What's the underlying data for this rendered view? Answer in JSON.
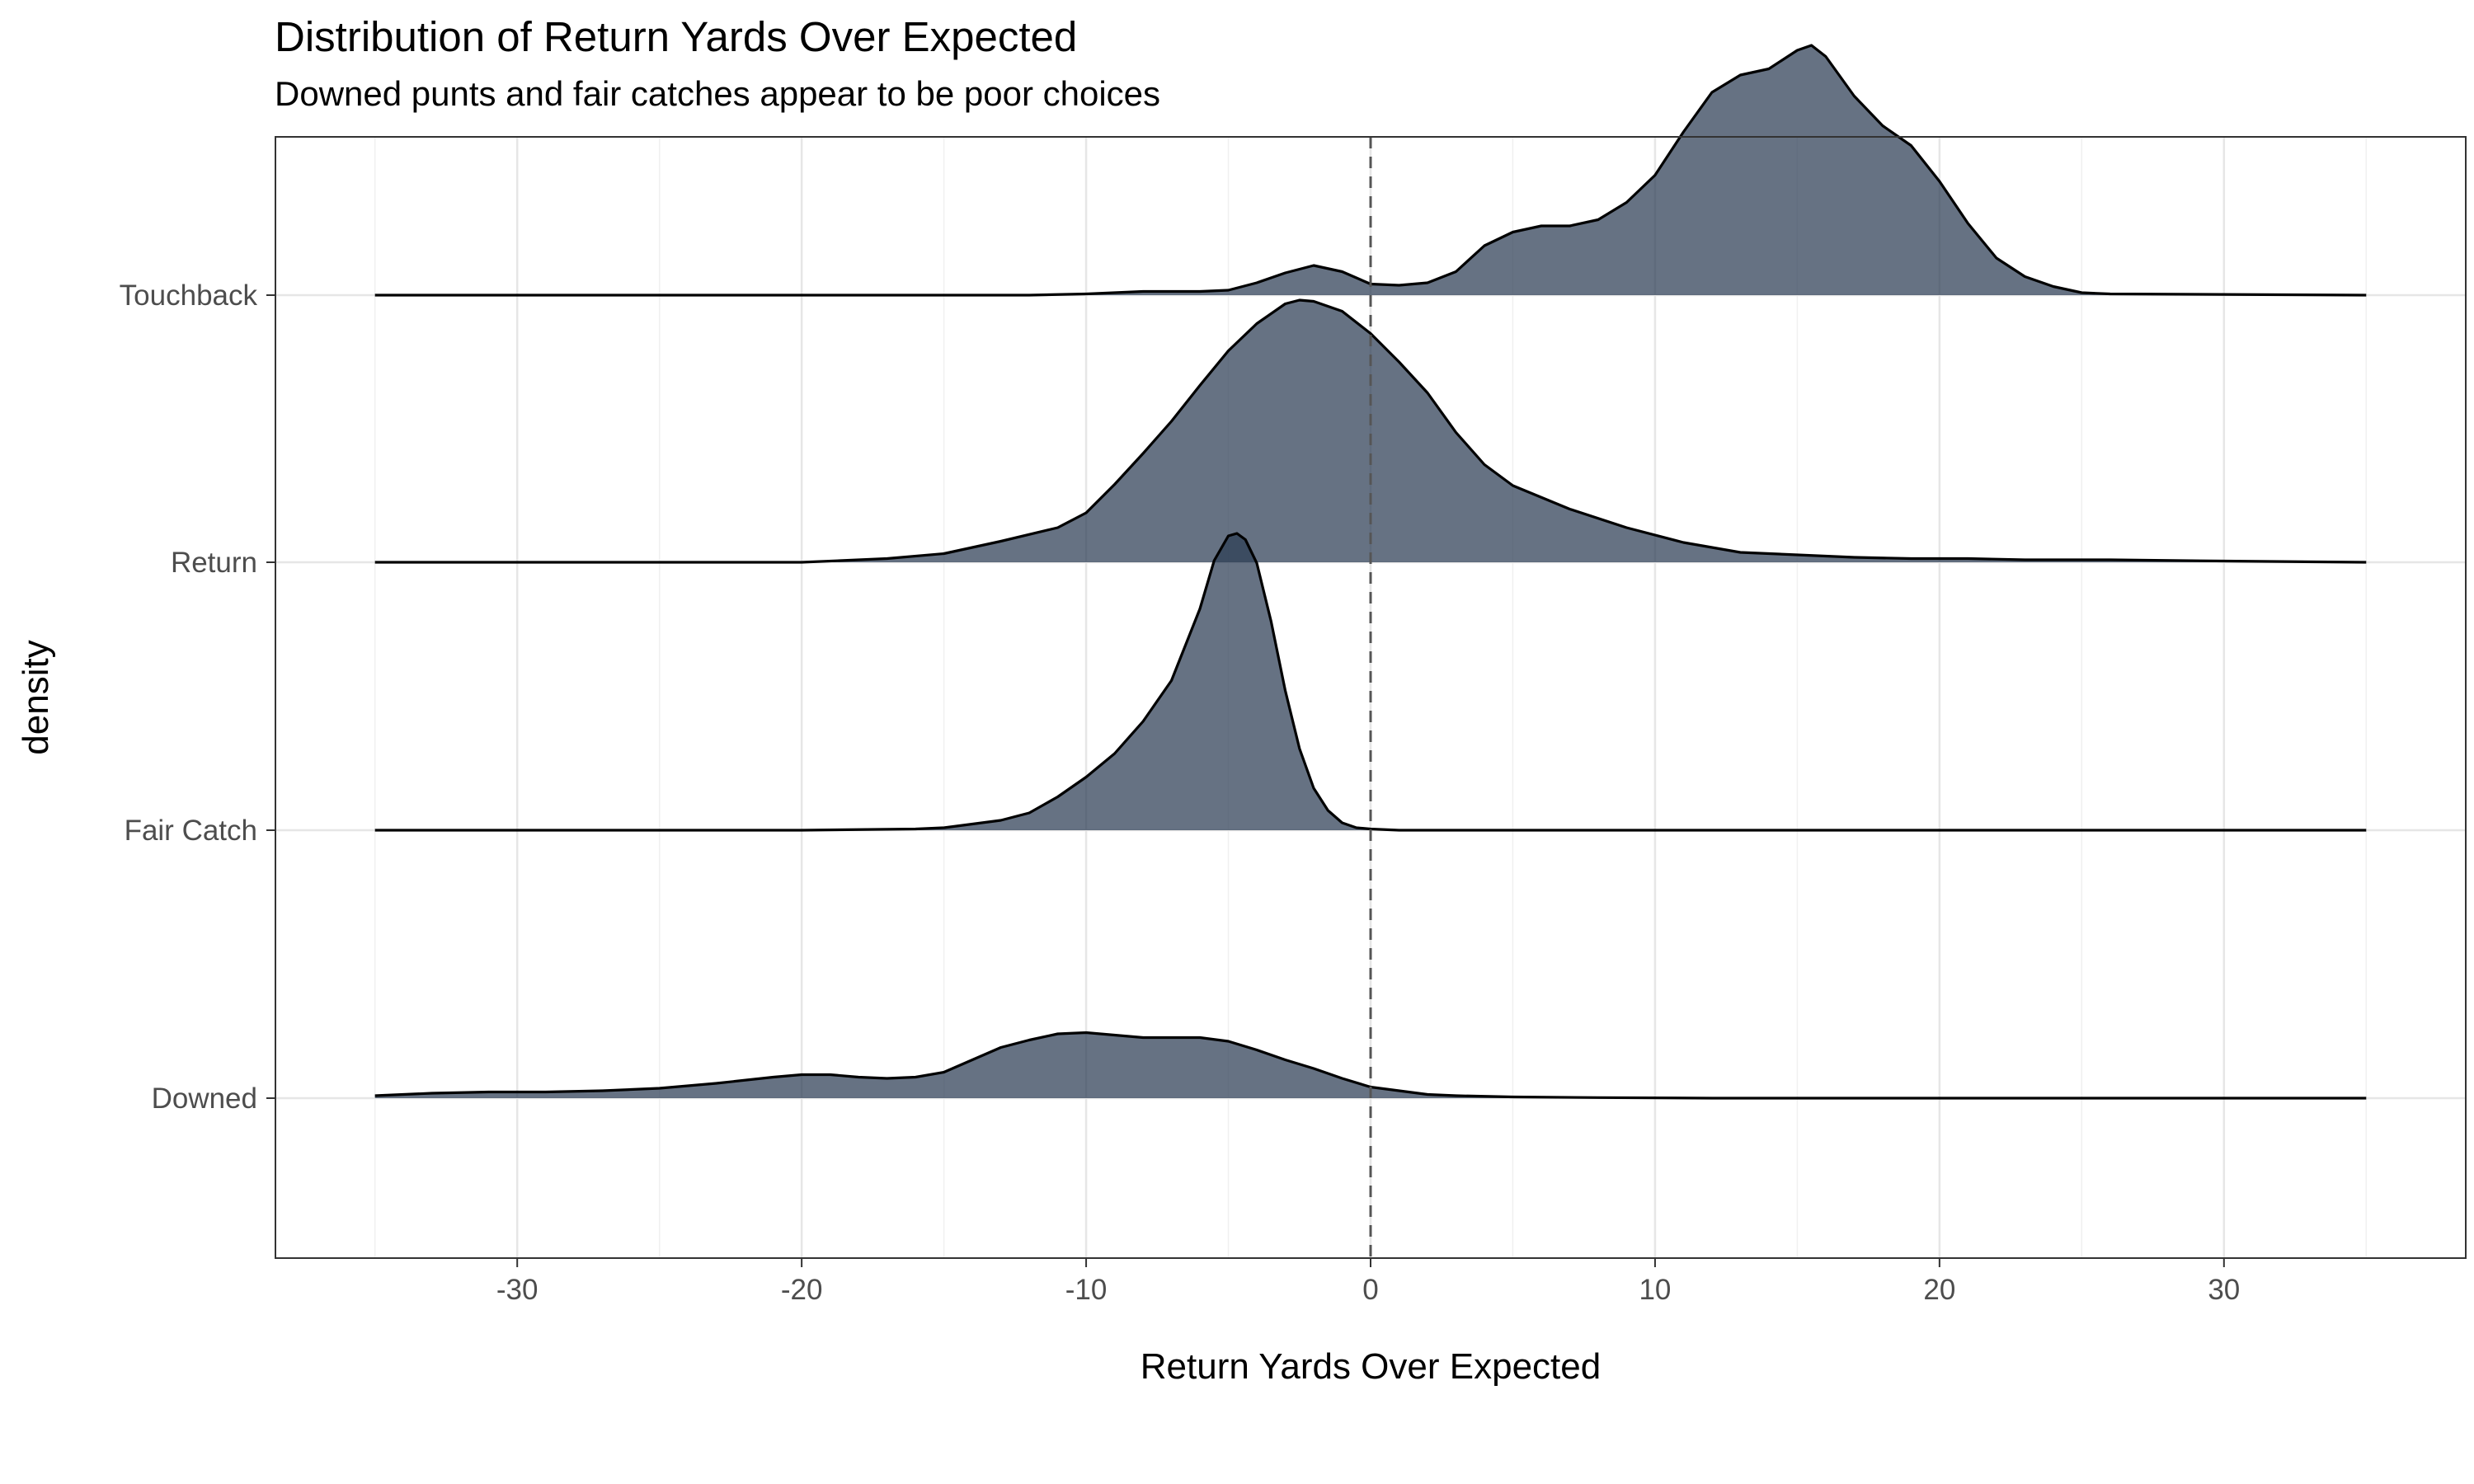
{
  "chart_data": {
    "type": "ridgeline",
    "title": "Distribution of Return Yards Over Expected",
    "subtitle": "Downed punts and fair catches appear to be poor choices",
    "xlabel": "Return Yards Over Expected",
    "ylabel": "density",
    "xlim": [
      -38.5,
      38.5
    ],
    "x_ticks": [
      -30,
      -20,
      -10,
      0,
      10,
      20,
      30
    ],
    "categories": [
      "Downed",
      "Fair Catch",
      "Return",
      "Touchback"
    ],
    "fill_color": "#2d3e55",
    "fill_opacity": 0.73,
    "reference_line": {
      "x": 0,
      "style": "dashed"
    },
    "grid": true,
    "series": [
      {
        "name": "Downed",
        "points": [
          [
            -35,
            0.02
          ],
          [
            -33,
            0.04
          ],
          [
            -31,
            0.05
          ],
          [
            -29,
            0.05
          ],
          [
            -27,
            0.06
          ],
          [
            -25,
            0.08
          ],
          [
            -23,
            0.12
          ],
          [
            -21,
            0.17
          ],
          [
            -20,
            0.19
          ],
          [
            -19,
            0.19
          ],
          [
            -18,
            0.17
          ],
          [
            -17,
            0.16
          ],
          [
            -16,
            0.17
          ],
          [
            -15,
            0.21
          ],
          [
            -14,
            0.31
          ],
          [
            -13,
            0.41
          ],
          [
            -12,
            0.47
          ],
          [
            -11,
            0.52
          ],
          [
            -10,
            0.53
          ],
          [
            -9,
            0.51
          ],
          [
            -8,
            0.49
          ],
          [
            -7,
            0.49
          ],
          [
            -6,
            0.49
          ],
          [
            -5,
            0.46
          ],
          [
            -4,
            0.39
          ],
          [
            -3,
            0.31
          ],
          [
            -2,
            0.24
          ],
          [
            -1,
            0.16
          ],
          [
            0,
            0.09
          ],
          [
            1,
            0.06
          ],
          [
            2,
            0.03
          ],
          [
            3,
            0.02
          ],
          [
            5,
            0.01
          ],
          [
            8,
            0.005
          ],
          [
            12,
            0
          ],
          [
            35,
            0
          ]
        ]
      },
      {
        "name": "Fair Catch",
        "points": [
          [
            -35,
            0
          ],
          [
            -20,
            0
          ],
          [
            -16,
            0.01
          ],
          [
            -15,
            0.02
          ],
          [
            -14,
            0.05
          ],
          [
            -13,
            0.08
          ],
          [
            -12,
            0.14
          ],
          [
            -11,
            0.27
          ],
          [
            -10,
            0.43
          ],
          [
            -9,
            0.62
          ],
          [
            -8,
            0.88
          ],
          [
            -7,
            1.21
          ],
          [
            -6,
            1.79
          ],
          [
            -5.5,
            2.18
          ],
          [
            -5,
            2.38
          ],
          [
            -4.7,
            2.4
          ],
          [
            -4.4,
            2.35
          ],
          [
            -4,
            2.16
          ],
          [
            -3.5,
            1.69
          ],
          [
            -3,
            1.13
          ],
          [
            -2.5,
            0.66
          ],
          [
            -2,
            0.34
          ],
          [
            -1.5,
            0.16
          ],
          [
            -1,
            0.06
          ],
          [
            -0.5,
            0.02
          ],
          [
            0,
            0.01
          ],
          [
            1,
            0
          ],
          [
            35,
            0
          ]
        ]
      },
      {
        "name": "Return",
        "points": [
          [
            -35,
            0
          ],
          [
            -20,
            0
          ],
          [
            -17,
            0.03
          ],
          [
            -15,
            0.07
          ],
          [
            -13,
            0.17
          ],
          [
            -11,
            0.28
          ],
          [
            -10,
            0.4
          ],
          [
            -9,
            0.63
          ],
          [
            -8,
            0.88
          ],
          [
            -7,
            1.14
          ],
          [
            -6,
            1.43
          ],
          [
            -5,
            1.71
          ],
          [
            -4,
            1.93
          ],
          [
            -3,
            2.09
          ],
          [
            -2.5,
            2.12
          ],
          [
            -2,
            2.11
          ],
          [
            -1,
            2.03
          ],
          [
            0,
            1.85
          ],
          [
            1,
            1.62
          ],
          [
            2,
            1.37
          ],
          [
            3,
            1.05
          ],
          [
            4,
            0.79
          ],
          [
            5,
            0.62
          ],
          [
            7,
            0.43
          ],
          [
            9,
            0.28
          ],
          [
            11,
            0.16
          ],
          [
            13,
            0.08
          ],
          [
            15,
            0.06
          ],
          [
            17,
            0.04
          ],
          [
            19,
            0.03
          ],
          [
            21,
            0.03
          ],
          [
            23,
            0.02
          ],
          [
            26,
            0.02
          ],
          [
            30,
            0.01
          ],
          [
            35,
            0
          ]
        ]
      },
      {
        "name": "Touchback",
        "points": [
          [
            -35,
            0
          ],
          [
            -12,
            0
          ],
          [
            -10,
            0.01
          ],
          [
            -8,
            0.03
          ],
          [
            -6,
            0.03
          ],
          [
            -5,
            0.04
          ],
          [
            -4,
            0.1
          ],
          [
            -3,
            0.18
          ],
          [
            -2,
            0.24
          ],
          [
            -1,
            0.19
          ],
          [
            0,
            0.09
          ],
          [
            1,
            0.08
          ],
          [
            2,
            0.1
          ],
          [
            3,
            0.19
          ],
          [
            4,
            0.4
          ],
          [
            5,
            0.51
          ],
          [
            6,
            0.56
          ],
          [
            7,
            0.56
          ],
          [
            8,
            0.61
          ],
          [
            9,
            0.75
          ],
          [
            10,
            0.97
          ],
          [
            11,
            1.32
          ],
          [
            12,
            1.64
          ],
          [
            13,
            1.78
          ],
          [
            14,
            1.83
          ],
          [
            15,
            1.98
          ],
          [
            15.5,
            2.02
          ],
          [
            16,
            1.93
          ],
          [
            17,
            1.61
          ],
          [
            18,
            1.37
          ],
          [
            19,
            1.21
          ],
          [
            20,
            0.92
          ],
          [
            21,
            0.58
          ],
          [
            22,
            0.3
          ],
          [
            23,
            0.15
          ],
          [
            24,
            0.07
          ],
          [
            25,
            0.02
          ],
          [
            26,
            0.01
          ],
          [
            35,
            0
          ]
        ]
      }
    ]
  }
}
